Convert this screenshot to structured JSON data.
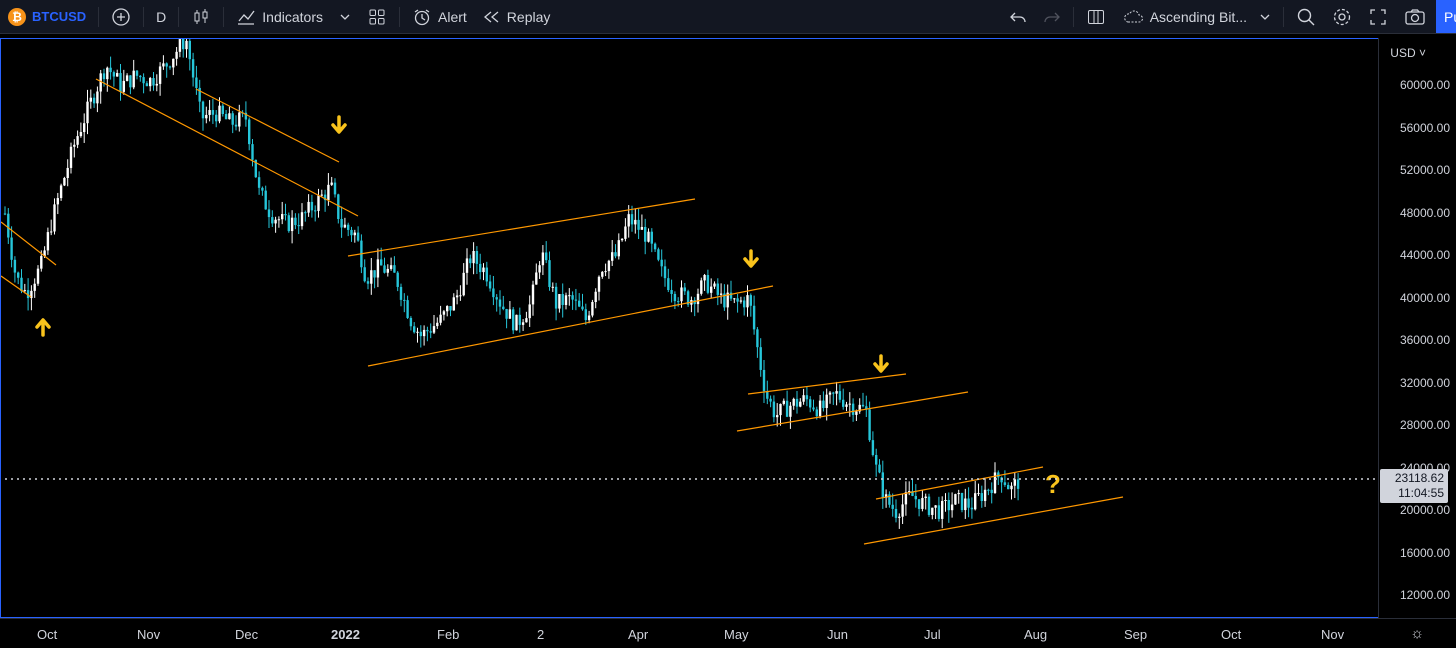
{
  "toolbar": {
    "logo_letter": "₿",
    "symbol": "BTCUSD",
    "interval": "D",
    "indicators_label": "Indicators",
    "alert_label": "Alert",
    "replay_label": "Replay",
    "layout_name": "Ascending Bit...",
    "publish_label": "Pu"
  },
  "price_scale": {
    "currency": "USD",
    "labels": [
      "60000.00",
      "56000.00",
      "52000.00",
      "48000.00",
      "44000.00",
      "40000.00",
      "36000.00",
      "32000.00",
      "28000.00",
      "24000.00",
      "20000.00",
      "16000.00",
      "12000.00"
    ]
  },
  "current_price": {
    "value": "23118.62",
    "countdown": "11:04:55"
  },
  "time_scale": {
    "labels": [
      "Oct",
      "Nov",
      "Dec",
      "2022",
      "Feb",
      "2",
      "Apr",
      "May",
      "Jun",
      "Jul",
      "Aug",
      "Sep",
      "Oct",
      "Nov"
    ]
  },
  "annotations": {
    "question": "?"
  },
  "colors": {
    "up": "#ffffff",
    "down": "#26c6da",
    "trendline": "#ff9800",
    "arrow": "#f9c31c",
    "accent": "#2962ff"
  }
}
